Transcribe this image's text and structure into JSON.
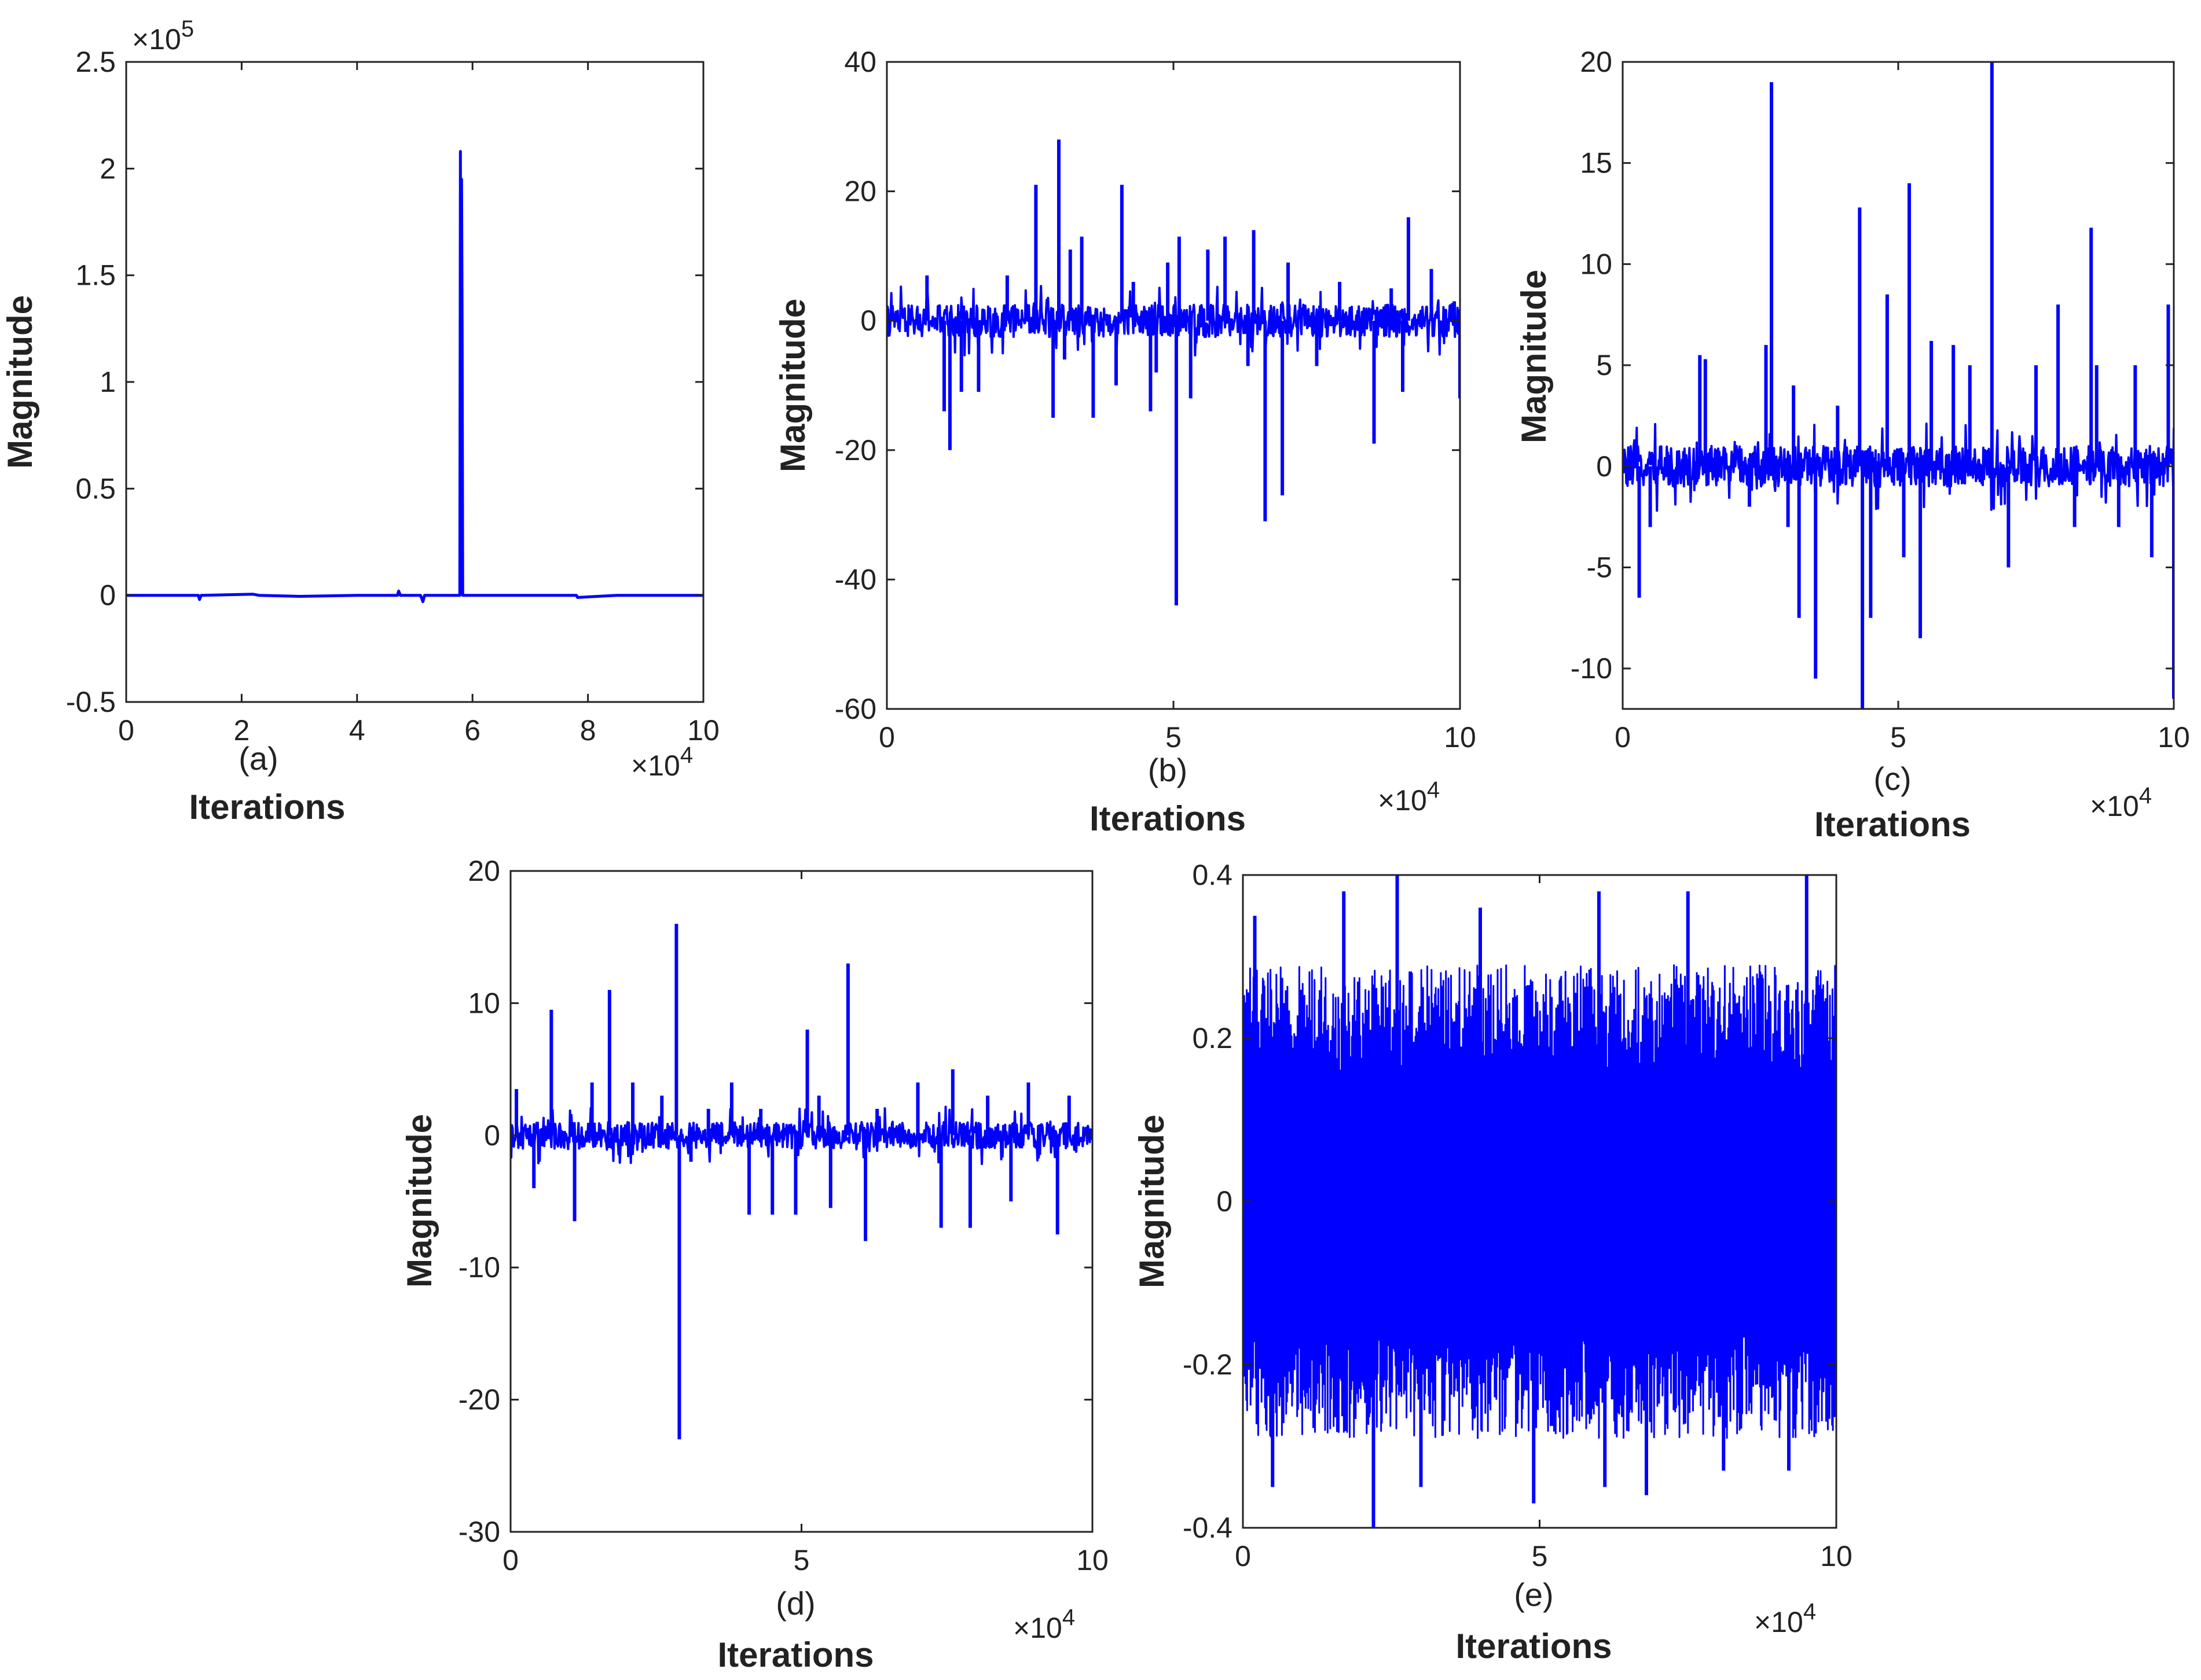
{
  "chart_data": [
    {
      "panel": "(a)",
      "type": "line",
      "xlabel": "Iterations",
      "ylabel": "Magnitude",
      "x_multiplier": "×10^4",
      "y_multiplier": "×10^5",
      "xlim": [
        0,
        10
      ],
      "ylim": [
        -0.5,
        2.5
      ],
      "xticks": [
        "0",
        "2",
        "4",
        "6",
        "8",
        "10"
      ],
      "yticks": [
        "-0.5",
        "0",
        "0.5",
        "1",
        "1.5",
        "2",
        "2.5"
      ],
      "color": "#0000ff",
      "series": [
        {
          "x": [
            0,
            1.0,
            1.25,
            1.27,
            1.3,
            2.2,
            2.3,
            3.0,
            4.0,
            4.7,
            4.72,
            4.75,
            5.1,
            5.14,
            5.17,
            5.5,
            5.78,
            5.79,
            5.8,
            5.81,
            5.82,
            5.83,
            5.85,
            6.2,
            7.0,
            7.8,
            7.82,
            8.5,
            9.5,
            10
          ],
          "y": [
            0,
            0,
            0,
            -0.02,
            0,
            0.005,
            0,
            -0.005,
            0,
            0,
            0.02,
            0,
            0,
            -0.03,
            0,
            0,
            0,
            2.08,
            0.3,
            1.95,
            1.25,
            0,
            0,
            0,
            0,
            0,
            -0.01,
            0,
            0,
            0
          ]
        }
      ]
    },
    {
      "panel": "(b)",
      "type": "line",
      "xlabel": "Iterations",
      "ylabel": "Magnitude",
      "x_multiplier": "×10^4",
      "xlim": [
        0,
        10
      ],
      "ylim": [
        -60,
        40
      ],
      "xticks": [
        "0",
        "5",
        "10"
      ],
      "yticks": [
        "-60",
        "-40",
        "-20",
        "0",
        "20",
        "40"
      ],
      "color": "#0000ff",
      "noise": 2.5,
      "series": [
        {
          "spikes": [
            [
              0.7,
              7
            ],
            [
              1.0,
              -14
            ],
            [
              1.1,
              -20
            ],
            [
              1.3,
              -11
            ],
            [
              1.6,
              -11
            ],
            [
              2.1,
              7
            ],
            [
              2.6,
              21
            ],
            [
              2.9,
              -15
            ],
            [
              3.0,
              28
            ],
            [
              3.1,
              -6
            ],
            [
              3.2,
              11
            ],
            [
              3.4,
              13
            ],
            [
              3.6,
              -15
            ],
            [
              4.0,
              -10
            ],
            [
              4.1,
              21
            ],
            [
              4.3,
              6
            ],
            [
              4.6,
              -14
            ],
            [
              4.7,
              -8
            ],
            [
              4.9,
              9
            ],
            [
              5.05,
              -44
            ],
            [
              5.1,
              13
            ],
            [
              5.3,
              -12
            ],
            [
              5.6,
              11
            ],
            [
              5.9,
              13
            ],
            [
              6.3,
              -7
            ],
            [
              6.4,
              14
            ],
            [
              6.6,
              -31
            ],
            [
              6.9,
              -27
            ],
            [
              7.0,
              9
            ],
            [
              7.5,
              -7
            ],
            [
              7.9,
              6
            ],
            [
              8.5,
              -19
            ],
            [
              8.8,
              5
            ],
            [
              9.0,
              -11
            ],
            [
              9.1,
              16
            ],
            [
              9.5,
              8
            ],
            [
              9.9,
              3
            ],
            [
              10.0,
              -12
            ]
          ]
        }
      ]
    },
    {
      "panel": "(c)",
      "type": "line",
      "xlabel": "Iterations",
      "ylabel": "Magnitude",
      "x_multiplier": "×10^4",
      "xlim": [
        0,
        10
      ],
      "ylim": [
        -12,
        20
      ],
      "xticks": [
        "0",
        "5",
        "10"
      ],
      "yticks": [
        "-10",
        "-5",
        "0",
        "5",
        "10",
        "15",
        "20"
      ],
      "color": "#0000ff",
      "noise": 1.0,
      "series": [
        {
          "spikes": [
            [
              0.3,
              -6.5
            ],
            [
              0.5,
              -3
            ],
            [
              1.4,
              5.5
            ],
            [
              1.5,
              5.3
            ],
            [
              2.3,
              -2
            ],
            [
              2.6,
              6
            ],
            [
              2.7,
              19
            ],
            [
              3.0,
              -3
            ],
            [
              3.1,
              4
            ],
            [
              3.2,
              -7.5
            ],
            [
              3.5,
              -10.5
            ],
            [
              3.9,
              3
            ],
            [
              4.3,
              12.8
            ],
            [
              4.35,
              -12
            ],
            [
              4.5,
              -7.5
            ],
            [
              4.8,
              8.5
            ],
            [
              5.1,
              -4.5
            ],
            [
              5.2,
              14
            ],
            [
              5.4,
              -8.5
            ],
            [
              5.6,
              6.2
            ],
            [
              6.0,
              6
            ],
            [
              6.3,
              5
            ],
            [
              6.7,
              20
            ],
            [
              7.0,
              -5
            ],
            [
              7.5,
              5
            ],
            [
              7.9,
              8
            ],
            [
              8.2,
              -3
            ],
            [
              8.5,
              11.8
            ],
            [
              8.6,
              5
            ],
            [
              9.0,
              -3
            ],
            [
              9.3,
              5
            ],
            [
              9.6,
              -4.5
            ],
            [
              9.9,
              8
            ],
            [
              10.0,
              -11.5
            ]
          ]
        }
      ]
    },
    {
      "panel": "(d)",
      "type": "line",
      "xlabel": "Iterations",
      "ylabel": "Magnitude",
      "x_multiplier": "×10^4",
      "xlim": [
        0,
        10
      ],
      "ylim": [
        -30,
        20
      ],
      "xticks": [
        "0",
        "5",
        "10"
      ],
      "yticks": [
        "-30",
        "-20",
        "-10",
        "0",
        "10",
        "20"
      ],
      "color": "#0000ff",
      "noise": 1.0,
      "series": [
        {
          "spikes": [
            [
              0.1,
              3.5
            ],
            [
              0.4,
              -4
            ],
            [
              0.7,
              9.5
            ],
            [
              1.1,
              -6.5
            ],
            [
              1.4,
              4
            ],
            [
              1.7,
              11
            ],
            [
              2.1,
              4
            ],
            [
              2.6,
              3
            ],
            [
              2.85,
              16
            ],
            [
              2.9,
              -23
            ],
            [
              3.1,
              -2
            ],
            [
              3.4,
              2
            ],
            [
              3.8,
              4
            ],
            [
              4.1,
              -6
            ],
            [
              4.3,
              2
            ],
            [
              4.5,
              -6
            ],
            [
              4.9,
              -6
            ],
            [
              5.1,
              8
            ],
            [
              5.3,
              3
            ],
            [
              5.5,
              -5.5
            ],
            [
              5.8,
              13
            ],
            [
              6.1,
              -8
            ],
            [
              6.3,
              2
            ],
            [
              7.0,
              4
            ],
            [
              7.4,
              -7
            ],
            [
              7.6,
              5
            ],
            [
              7.9,
              -7
            ],
            [
              8.2,
              3
            ],
            [
              8.6,
              -5
            ],
            [
              8.9,
              4
            ],
            [
              9.4,
              -7.5
            ],
            [
              9.6,
              3
            ]
          ]
        }
      ]
    },
    {
      "panel": "(e)",
      "type": "line",
      "xlabel": "Iterations",
      "ylabel": "Magnitude",
      "x_multiplier": "×10^4",
      "xlim": [
        0,
        10
      ],
      "ylim": [
        -0.4,
        0.4
      ],
      "xticks": [
        "0",
        "5",
        "10"
      ],
      "yticks": [
        "-0.4",
        "-0.2",
        "0",
        "0.2",
        "0.4"
      ],
      "color": "#0000ff",
      "noise": 0.29,
      "series": [
        {
          "spikes": [
            [
              0.2,
              0.35
            ],
            [
              0.5,
              -0.35
            ],
            [
              1.7,
              0.38
            ],
            [
              2.2,
              -0.4
            ],
            [
              2.6,
              0.4
            ],
            [
              3.0,
              -0.35
            ],
            [
              4.0,
              0.36
            ],
            [
              4.9,
              -0.37
            ],
            [
              6.0,
              0.38
            ],
            [
              6.1,
              -0.35
            ],
            [
              6.8,
              -0.36
            ],
            [
              7.5,
              0.38
            ],
            [
              8.1,
              -0.33
            ],
            [
              9.2,
              -0.33
            ],
            [
              9.5,
              0.4
            ]
          ]
        }
      ]
    }
  ]
}
